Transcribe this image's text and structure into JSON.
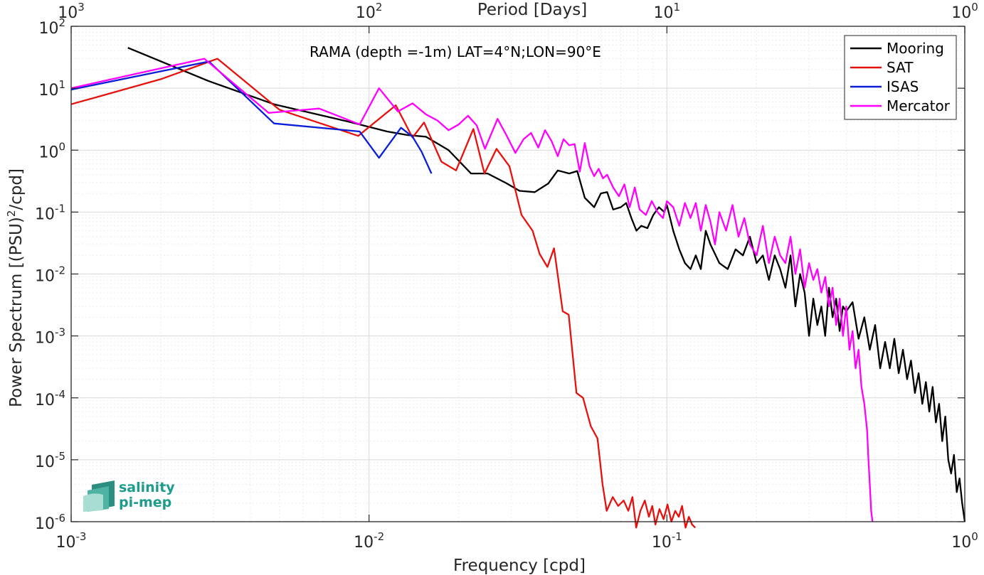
{
  "chart_data": {
    "type": "line",
    "title": "RAMA (depth =-1m) LAT=4°N;LON=90°E",
    "xlabel": "Frequency [cpd]",
    "ylabel": "Power Spectrum [(PSU)",
    "ylabel_sup": "2",
    "ylabel_tail": "/cpd]",
    "top_xlabel": "Period [Days]",
    "xscale": "log",
    "yscale": "log",
    "xlim": [
      0.001,
      1
    ],
    "ylim": [
      1e-06,
      100
    ],
    "grid": true,
    "legend_position": "top-right",
    "x_ticks": [
      {
        "base": "10",
        "exp": "-3"
      },
      {
        "base": "10",
        "exp": "-2"
      },
      {
        "base": "10",
        "exp": "-1"
      },
      {
        "base": "10",
        "exp": "0"
      }
    ],
    "top_ticks": [
      {
        "base": "10",
        "exp": "3"
      },
      {
        "base": "10",
        "exp": "2"
      },
      {
        "base": "10",
        "exp": "1"
      },
      {
        "base": "10",
        "exp": "0"
      }
    ],
    "y_ticks": [
      {
        "base": "10",
        "exp": "-6"
      },
      {
        "base": "10",
        "exp": "-5"
      },
      {
        "base": "10",
        "exp": "-4"
      },
      {
        "base": "10",
        "exp": "-3"
      },
      {
        "base": "10",
        "exp": "-2"
      },
      {
        "base": "10",
        "exp": "-1"
      },
      {
        "base": "10",
        "exp": "0",
        "text": "10"
      },
      {
        "base": "10",
        "exp": "1",
        "text": "10"
      },
      {
        "base": "10",
        "exp": "2",
        "text": "10"
      }
    ],
    "y_tick_plain": [
      "",
      "",
      "",
      "",
      "",
      "",
      "10",
      "10",
      "10"
    ],
    "series": [
      {
        "name": "Mooring",
        "color": "#000000",
        "points": [
          [
            0.00155,
            45
          ],
          [
            0.0029,
            13
          ],
          [
            0.0048,
            5.5
          ],
          [
            0.0085,
            2.9
          ],
          [
            0.0115,
            2.0
          ],
          [
            0.0135,
            1.75
          ],
          [
            0.0155,
            1.65
          ],
          [
            0.0185,
            1.0
          ],
          [
            0.022,
            0.42
          ],
          [
            0.025,
            0.42
          ],
          [
            0.029,
            0.29
          ],
          [
            0.032,
            0.22
          ],
          [
            0.036,
            0.21
          ],
          [
            0.04,
            0.29
          ],
          [
            0.043,
            0.47
          ],
          [
            0.047,
            0.42
          ],
          [
            0.05,
            0.46
          ],
          [
            0.053,
            0.17
          ],
          [
            0.057,
            0.12
          ],
          [
            0.06,
            0.2
          ],
          [
            0.063,
            0.21
          ],
          [
            0.066,
            0.11
          ],
          [
            0.07,
            0.12
          ],
          [
            0.073,
            0.14
          ],
          [
            0.076,
            0.08
          ],
          [
            0.079,
            0.05
          ],
          [
            0.082,
            0.06
          ],
          [
            0.086,
            0.055
          ],
          [
            0.09,
            0.09
          ],
          [
            0.094,
            0.12
          ],
          [
            0.098,
            0.1
          ],
          [
            0.1,
            0.13
          ],
          [
            0.105,
            0.05
          ],
          [
            0.11,
            0.025
          ],
          [
            0.115,
            0.015
          ],
          [
            0.12,
            0.012
          ],
          [
            0.125,
            0.02
          ],
          [
            0.13,
            0.012
          ],
          [
            0.135,
            0.05
          ],
          [
            0.14,
            0.03
          ],
          [
            0.15,
            0.015
          ],
          [
            0.16,
            0.012
          ],
          [
            0.17,
            0.025
          ],
          [
            0.18,
            0.02
          ],
          [
            0.19,
            0.04
          ],
          [
            0.2,
            0.015
          ],
          [
            0.21,
            0.02
          ],
          [
            0.22,
            0.008
          ],
          [
            0.23,
            0.02
          ],
          [
            0.24,
            0.012
          ],
          [
            0.25,
            0.006
          ],
          [
            0.26,
            0.02
          ],
          [
            0.27,
            0.003
          ],
          [
            0.28,
            0.01
          ],
          [
            0.29,
            0.005
          ],
          [
            0.3,
            0.001
          ],
          [
            0.31,
            0.004
          ],
          [
            0.32,
            0.0015
          ],
          [
            0.33,
            0.003
          ],
          [
            0.34,
            0.001
          ],
          [
            0.35,
            0.006
          ],
          [
            0.36,
            0.002
          ],
          [
            0.37,
            0.004
          ],
          [
            0.38,
            0.0012
          ],
          [
            0.39,
            0.003
          ],
          [
            0.4,
            0.0025
          ],
          [
            0.42,
            0.0035
          ],
          [
            0.44,
            0.0009
          ],
          [
            0.46,
            0.002
          ],
          [
            0.48,
            0.0006
          ],
          [
            0.5,
            0.0015
          ],
          [
            0.52,
            0.0003
          ],
          [
            0.54,
            0.0008
          ],
          [
            0.56,
            0.0003
          ],
          [
            0.58,
            0.0009
          ],
          [
            0.6,
            0.00025
          ],
          [
            0.62,
            0.0006
          ],
          [
            0.64,
            0.0002
          ],
          [
            0.66,
            0.0004
          ],
          [
            0.68,
            0.00012
          ],
          [
            0.7,
            0.00025
          ],
          [
            0.72,
            8e-05
          ],
          [
            0.74,
            0.00018
          ],
          [
            0.76,
            6e-05
          ],
          [
            0.78,
            0.00015
          ],
          [
            0.8,
            4e-05
          ],
          [
            0.82,
            8e-05
          ],
          [
            0.84,
            2e-05
          ],
          [
            0.86,
            5e-05
          ],
          [
            0.88,
            1e-05
          ],
          [
            0.9,
            6e-06
          ],
          [
            0.92,
            1.2e-05
          ],
          [
            0.94,
            3e-06
          ],
          [
            0.96,
            5e-06
          ],
          [
            0.98,
            2e-06
          ],
          [
            1.0,
            1e-06
          ]
        ]
      },
      {
        "name": "SAT",
        "color": "#e8100c",
        "points": [
          [
            0.001,
            5.5
          ],
          [
            0.002,
            14
          ],
          [
            0.0031,
            30
          ],
          [
            0.005,
            4.5
          ],
          [
            0.0092,
            1.7
          ],
          [
            0.0123,
            5.3
          ],
          [
            0.014,
            1.6
          ],
          [
            0.0153,
            2.8
          ],
          [
            0.0175,
            0.65
          ],
          [
            0.0196,
            0.47
          ],
          [
            0.0224,
            2.2
          ],
          [
            0.0244,
            0.42
          ],
          [
            0.0268,
            1.05
          ],
          [
            0.0296,
            0.55
          ],
          [
            0.0325,
            0.09
          ],
          [
            0.0354,
            0.05
          ],
          [
            0.0374,
            0.021
          ],
          [
            0.0397,
            0.013
          ],
          [
            0.0418,
            0.026
          ],
          [
            0.0447,
            0.0025
          ],
          [
            0.0468,
            0.0022
          ],
          [
            0.0497,
            0.00012
          ],
          [
            0.0523,
            0.0001
          ],
          [
            0.0555,
            3.5e-05
          ],
          [
            0.0585,
            2.2e-05
          ],
          [
            0.0608,
            4e-06
          ],
          [
            0.0628,
            1.5e-06
          ],
          [
            0.0658,
            2.5e-06
          ],
          [
            0.0686,
            1.8e-06
          ],
          [
            0.0716,
            2.2e-06
          ],
          [
            0.0742,
            1.5e-06
          ],
          [
            0.0766,
            2.5e-06
          ],
          [
            0.0789,
            8e-07
          ],
          [
            0.0815,
            1.5e-06
          ],
          [
            0.0843,
            2.2e-06
          ],
          [
            0.087,
            1.2e-06
          ],
          [
            0.0893,
            1.8e-06
          ],
          [
            0.0915,
            9e-07
          ],
          [
            0.0944,
            1.6e-06
          ],
          [
            0.0975,
            1.1e-06
          ],
          [
            0.1005,
            1.9e-06
          ],
          [
            0.1035,
            1e-06
          ],
          [
            0.1066,
            1.5e-06
          ],
          [
            0.1096,
            1.2e-06
          ],
          [
            0.1125,
            1.8e-06
          ],
          [
            0.1155,
            8e-07
          ],
          [
            0.1185,
            1.2e-06
          ],
          [
            0.1215,
            9e-07
          ],
          [
            0.1245,
            8e-07
          ]
        ]
      },
      {
        "name": "ISAS",
        "color": "#0a1ed8",
        "points": [
          [
            0.001,
            9.5
          ],
          [
            0.0029,
            27
          ],
          [
            0.0048,
            2.7
          ],
          [
            0.0093,
            2.0
          ],
          [
            0.0108,
            0.75
          ],
          [
            0.0128,
            2.3
          ],
          [
            0.014,
            1.65
          ],
          [
            0.015,
            0.95
          ],
          [
            0.0162,
            0.42
          ]
        ]
      },
      {
        "name": "Mercator",
        "color": "#ff00ff",
        "points": [
          [
            0.001,
            10
          ],
          [
            0.0028,
            30
          ],
          [
            0.0046,
            4
          ],
          [
            0.0068,
            4.7
          ],
          [
            0.0093,
            2.6
          ],
          [
            0.0108,
            10
          ],
          [
            0.0125,
            4.2
          ],
          [
            0.014,
            5.7
          ],
          [
            0.0155,
            3.8
          ],
          [
            0.017,
            3.0
          ],
          [
            0.0185,
            2.1
          ],
          [
            0.02,
            2.6
          ],
          [
            0.0215,
            3.6
          ],
          [
            0.023,
            2.5
          ],
          [
            0.0245,
            1.05
          ],
          [
            0.027,
            3.2
          ],
          [
            0.029,
            1.7
          ],
          [
            0.031,
            0.9
          ],
          [
            0.033,
            1.5
          ],
          [
            0.035,
            1.9
          ],
          [
            0.037,
            1.1
          ],
          [
            0.039,
            2.1
          ],
          [
            0.041,
            1.4
          ],
          [
            0.043,
            0.8
          ],
          [
            0.045,
            1.5
          ],
          [
            0.047,
            1.2
          ],
          [
            0.049,
            1.25
          ],
          [
            0.051,
            0.45
          ],
          [
            0.053,
            1.3
          ],
          [
            0.055,
            0.55
          ],
          [
            0.057,
            0.38
          ],
          [
            0.059,
            0.5
          ],
          [
            0.061,
            0.35
          ],
          [
            0.063,
            0.4
          ],
          [
            0.066,
            0.25
          ],
          [
            0.069,
            0.18
          ],
          [
            0.072,
            0.28
          ],
          [
            0.075,
            0.12
          ],
          [
            0.078,
            0.25
          ],
          [
            0.081,
            0.11
          ],
          [
            0.085,
            0.09
          ],
          [
            0.089,
            0.15
          ],
          [
            0.093,
            0.1
          ],
          [
            0.097,
            0.08
          ],
          [
            0.1,
            0.15
          ],
          [
            0.105,
            0.12
          ],
          [
            0.11,
            0.06
          ],
          [
            0.115,
            0.14
          ],
          [
            0.12,
            0.08
          ],
          [
            0.125,
            0.14
          ],
          [
            0.13,
            0.05
          ],
          [
            0.135,
            0.13
          ],
          [
            0.14,
            0.07
          ],
          [
            0.145,
            0.03
          ],
          [
            0.15,
            0.1
          ],
          [
            0.158,
            0.05
          ],
          [
            0.166,
            0.13
          ],
          [
            0.174,
            0.04
          ],
          [
            0.182,
            0.08
          ],
          [
            0.19,
            0.03
          ],
          [
            0.2,
            0.02
          ],
          [
            0.21,
            0.06
          ],
          [
            0.22,
            0.015
          ],
          [
            0.23,
            0.04
          ],
          [
            0.24,
            0.02
          ],
          [
            0.25,
            0.015
          ],
          [
            0.26,
            0.04
          ],
          [
            0.27,
            0.01
          ],
          [
            0.28,
            0.025
          ],
          [
            0.29,
            0.006
          ],
          [
            0.3,
            0.015
          ],
          [
            0.31,
            0.008
          ],
          [
            0.32,
            0.012
          ],
          [
            0.33,
            0.005
          ],
          [
            0.34,
            0.009
          ],
          [
            0.35,
            0.003
          ],
          [
            0.36,
            0.006
          ],
          [
            0.37,
            0.0015
          ],
          [
            0.38,
            0.004
          ],
          [
            0.39,
            0.001
          ],
          [
            0.4,
            0.003
          ],
          [
            0.41,
            0.0006
          ],
          [
            0.42,
            0.0012
          ],
          [
            0.43,
            0.0003
          ],
          [
            0.44,
            0.0006
          ],
          [
            0.45,
            0.00015
          ],
          [
            0.46,
            8e-05
          ],
          [
            0.47,
            3e-05
          ],
          [
            0.475,
            1e-05
          ],
          [
            0.48,
            4e-06
          ],
          [
            0.485,
            1.5e-06
          ],
          [
            0.49,
            1e-06
          ]
        ]
      }
    ],
    "logo": {
      "line1": "salinity",
      "line2": "pi-mep"
    }
  }
}
